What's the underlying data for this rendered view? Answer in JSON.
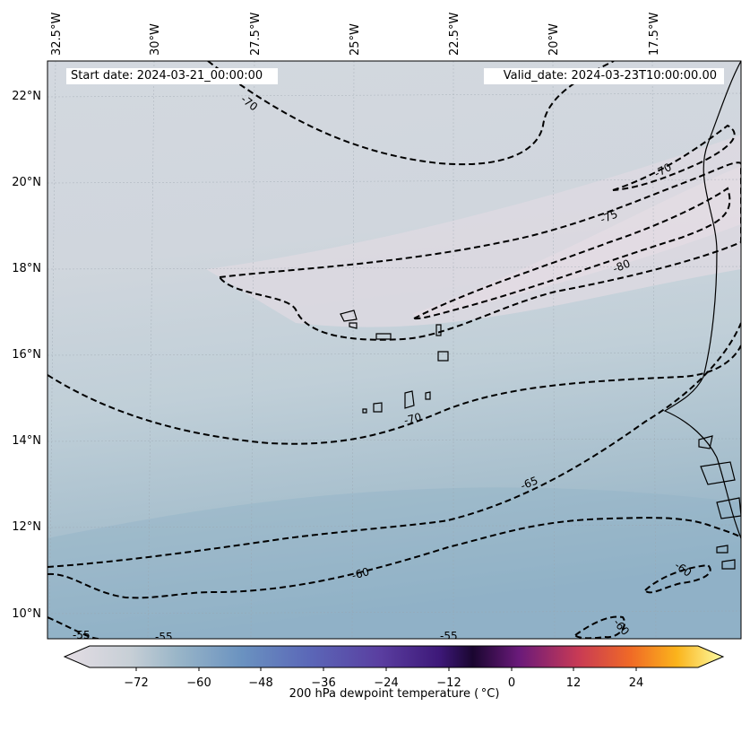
{
  "header": {
    "start_date": "Start date: 2024-03-21_00:00:00",
    "valid_date": "Valid_date: 2024-03-23T10:00:00.00"
  },
  "map": {
    "lon_labels": [
      "32.5°W",
      "30°W",
      "27.5°W",
      "25°W",
      "22.5°W",
      "20°W",
      "17.5°W"
    ],
    "lat_labels": [
      "22°N",
      "20°N",
      "18°N",
      "16°N",
      "14°N",
      "12°N",
      "10°N"
    ],
    "contour_labels": [
      "-70",
      "-70",
      "-75",
      "-80",
      "-70",
      "-65",
      "-60",
      "-60",
      "-60",
      "-55",
      "-55",
      "-55"
    ]
  },
  "colorbar": {
    "label": "200 hPa dewpoint temperature ($^\\circ$C)",
    "label_display": "200 hPa dewpoint temperature ( °C)",
    "ticks": [
      "−72",
      "−60",
      "−48",
      "−36",
      "−24",
      "−12",
      "0",
      "12",
      "24"
    ],
    "colors": {
      "min": "#e4dde4",
      "cold": "#9ab6c8",
      "mid": "#5b68b8",
      "purple": "#3d0f70",
      "red": "#d8423a",
      "max": "#fcfca4"
    }
  }
}
